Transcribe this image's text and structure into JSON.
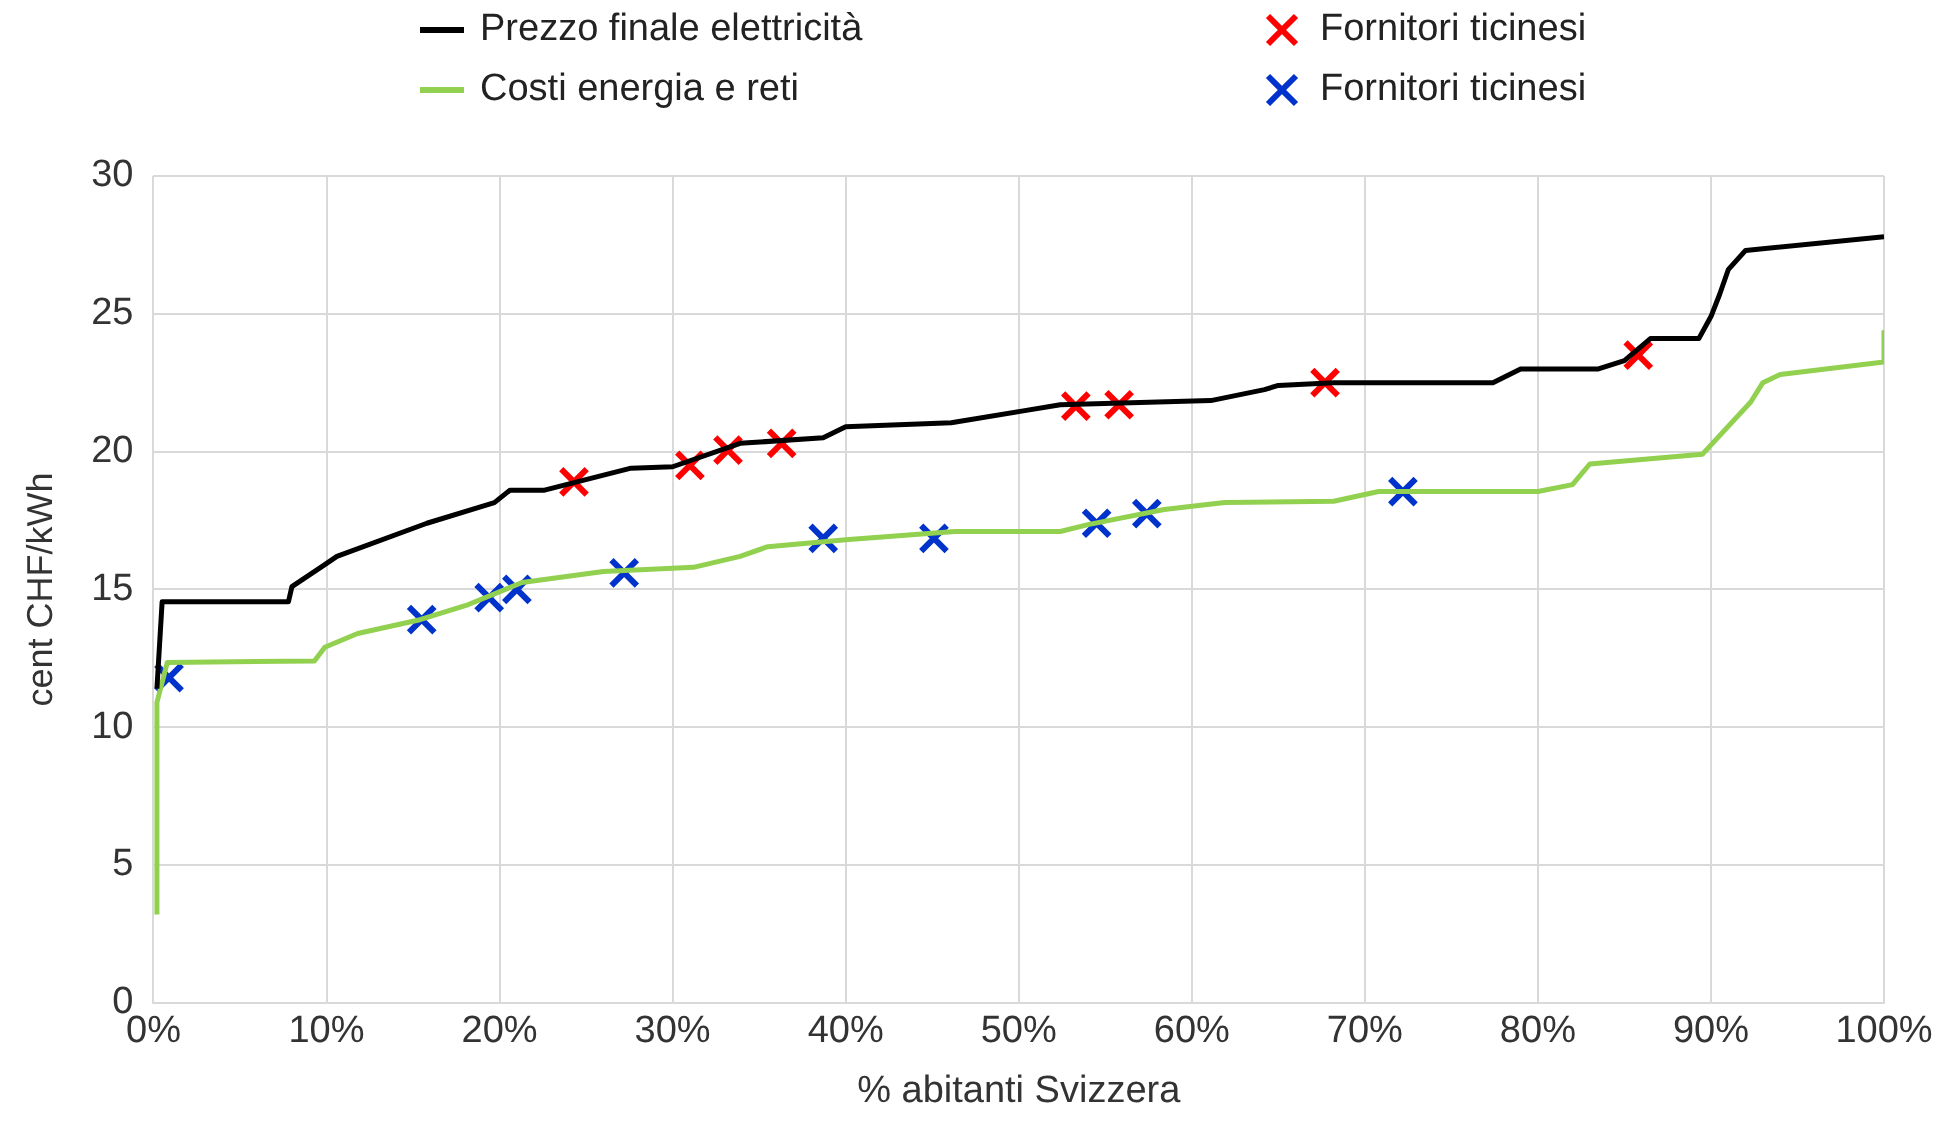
{
  "chart_data": {
    "type": "line",
    "xlabel": "% abitanti Svizzera",
    "ylabel": "cent CHF/kWh",
    "xlim": [
      0,
      100
    ],
    "ylim": [
      0,
      30
    ],
    "xticks": [
      {
        "value": 0,
        "label": "0%"
      },
      {
        "value": 10,
        "label": "10%"
      },
      {
        "value": 20,
        "label": "20%"
      },
      {
        "value": 30,
        "label": "30%"
      },
      {
        "value": 40,
        "label": "40%"
      },
      {
        "value": 50,
        "label": "50%"
      },
      {
        "value": 60,
        "label": "60%"
      },
      {
        "value": 70,
        "label": "70%"
      },
      {
        "value": 80,
        "label": "80%"
      },
      {
        "value": 90,
        "label": "90%"
      },
      {
        "value": 100,
        "label": "100%"
      }
    ],
    "yticks": [
      0,
      5,
      10,
      15,
      20,
      25,
      30
    ],
    "grid": true,
    "legend": "top",
    "marker": "none",
    "line_style": "solid",
    "series": [
      {
        "name": "Prezzo finale elettricità",
        "type": "line",
        "color": "#000000",
        "x": [
          0.2,
          0.5,
          7.8,
          8,
          9.9,
          10.6,
          15.8,
          19.7,
          20.6,
          22.6,
          27.6,
          30,
          33.9,
          38.7,
          40,
          46.1,
          50,
          52.4,
          61.1,
          64.2,
          65,
          68.2,
          77.4,
          79,
          83.5,
          85,
          86.5,
          89.3,
          90,
          90.5,
          91,
          92,
          100
        ],
        "values": [
          11.4,
          14.55,
          14.55,
          15.1,
          15.9,
          16.2,
          17.4,
          18.15,
          18.6,
          18.6,
          19.4,
          19.45,
          20.3,
          20.5,
          20.9,
          21.05,
          21.45,
          21.7,
          21.85,
          22.25,
          22.4,
          22.5,
          22.5,
          23,
          23,
          23.3,
          24.1,
          24.1,
          24.9,
          25.7,
          26.6,
          27.3,
          27.8
        ]
      },
      {
        "name": "Costi energia e reti",
        "type": "line",
        "color": "#92d050",
        "x": [
          0.2,
          0.2,
          0.8,
          9.3,
          9.9,
          11.8,
          15.4,
          18.2,
          21.3,
          26,
          31.2,
          33.9,
          35.5,
          40,
          46.3,
          52.4,
          54,
          58.4,
          61.9,
          68.2,
          70.8,
          80,
          82,
          83,
          89.5,
          92.3,
          93,
          94,
          100,
          100
        ],
        "values": [
          3.2,
          10.9,
          12.35,
          12.4,
          12.9,
          13.4,
          13.9,
          14.45,
          15.25,
          15.65,
          15.8,
          16.2,
          16.55,
          16.8,
          17.1,
          17.1,
          17.35,
          17.9,
          18.15,
          18.2,
          18.55,
          18.55,
          18.8,
          19.55,
          19.9,
          21.8,
          22.5,
          22.8,
          23.25,
          24.4
        ]
      },
      {
        "name": "Fornitori ticinesi",
        "type": "scatter",
        "marker": "cross",
        "color": "#ff0000",
        "x": [
          24.3,
          31.0,
          33.2,
          36.3,
          53.3,
          55.8,
          67.7,
          85.8
        ],
        "values": [
          18.9,
          19.5,
          20.05,
          20.3,
          21.65,
          21.7,
          22.5,
          23.5
        ]
      },
      {
        "name": "Fornitori ticinesi",
        "type": "scatter",
        "marker": "cross",
        "color": "#0033cc",
        "x": [
          0.9,
          15.5,
          19.4,
          21.0,
          27.2,
          38.7,
          45.1,
          54.5,
          57.4,
          72.2
        ],
        "values": [
          11.8,
          13.9,
          14.7,
          15.0,
          15.6,
          16.85,
          16.85,
          17.4,
          17.75,
          18.55
        ]
      }
    ]
  }
}
